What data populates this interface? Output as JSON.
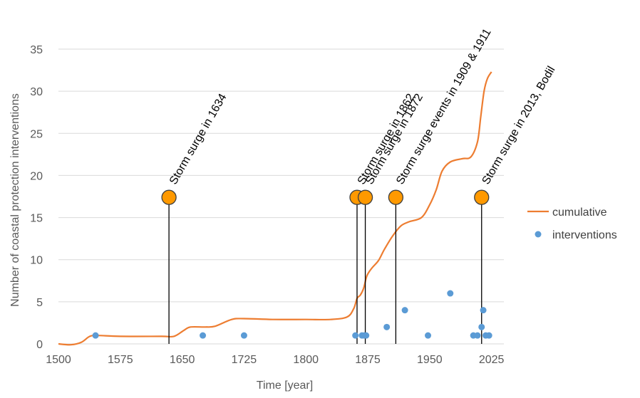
{
  "chart_data": {
    "type": "line",
    "title": "",
    "xlabel": "Time [year]",
    "ylabel": "Number of coastal protection interventions",
    "xlim": [
      1500,
      2040
    ],
    "ylim": [
      0,
      35
    ],
    "x_ticks": [
      1500,
      1575,
      1650,
      1725,
      1800,
      1875,
      1950,
      2025
    ],
    "y_ticks": [
      0,
      5,
      10,
      15,
      20,
      25,
      30,
      35
    ],
    "x_tick_labels": [
      "1500",
      "1575",
      "1650",
      "1725",
      "1800",
      "1875",
      "1950",
      "2025"
    ],
    "y_tick_labels": [
      "0",
      "5",
      "10",
      "15",
      "20",
      "25",
      "30",
      "35"
    ],
    "grid": "horizontal",
    "legend_position": "right",
    "series": [
      {
        "name": "cumulative",
        "kind": "line",
        "color": "#ED7D31",
        "points": [
          [
            1500,
            0
          ],
          [
            1515,
            -0.1
          ],
          [
            1528,
            0.2
          ],
          [
            1538,
            0.9
          ],
          [
            1548,
            1.0
          ],
          [
            1575,
            0.9
          ],
          [
            1625,
            0.9
          ],
          [
            1640,
            0.9
          ],
          [
            1652,
            1.6
          ],
          [
            1660,
            2.0
          ],
          [
            1678,
            2.0
          ],
          [
            1690,
            2.1
          ],
          [
            1710,
            2.9
          ],
          [
            1725,
            3.0
          ],
          [
            1760,
            2.9
          ],
          [
            1800,
            2.9
          ],
          [
            1830,
            2.9
          ],
          [
            1850,
            3.2
          ],
          [
            1858,
            4.2
          ],
          [
            1862,
            5.4
          ],
          [
            1866,
            5.8
          ],
          [
            1870,
            6.6
          ],
          [
            1874,
            8.1
          ],
          [
            1880,
            9.0
          ],
          [
            1888,
            9.9
          ],
          [
            1895,
            11.2
          ],
          [
            1905,
            12.8
          ],
          [
            1915,
            14.0
          ],
          [
            1925,
            14.5
          ],
          [
            1940,
            15.0
          ],
          [
            1950,
            16.5
          ],
          [
            1958,
            18.3
          ],
          [
            1965,
            20.5
          ],
          [
            1975,
            21.6
          ],
          [
            1990,
            22.0
          ],
          [
            2000,
            22.2
          ],
          [
            2008,
            24.0
          ],
          [
            2012,
            27.0
          ],
          [
            2016,
            30.0
          ],
          [
            2020,
            31.5
          ],
          [
            2025,
            32.3
          ]
        ]
      },
      {
        "name": "interventions",
        "kind": "scatter",
        "color": "#5B9BD5",
        "points": [
          [
            1545,
            1
          ],
          [
            1675,
            1
          ],
          [
            1725,
            1
          ],
          [
            1860,
            1
          ],
          [
            1868,
            1
          ],
          [
            1871,
            1
          ],
          [
            1873,
            1
          ],
          [
            1898,
            2
          ],
          [
            1920,
            4
          ],
          [
            1948,
            1
          ],
          [
            1975,
            6
          ],
          [
            2003,
            1
          ],
          [
            2008,
            1
          ],
          [
            2013,
            2
          ],
          [
            2015,
            4
          ],
          [
            2018,
            1
          ],
          [
            2022,
            1
          ]
        ]
      }
    ],
    "events": [
      {
        "year": 1634,
        "label": "Storm surge in 1634"
      },
      {
        "year": 1862,
        "label": "Storm surge in 1862"
      },
      {
        "year": 1872,
        "label": "Storm surge in 1872"
      },
      {
        "year": 1909,
        "label": "Storm surge events in 1909 & 1911"
      },
      {
        "year": 2013,
        "label": "Storm surge in 2013, Bodil"
      }
    ],
    "event_marker_value": 17.4,
    "event_marker_fill": "#FF9900",
    "event_marker_stroke": "#404040"
  }
}
